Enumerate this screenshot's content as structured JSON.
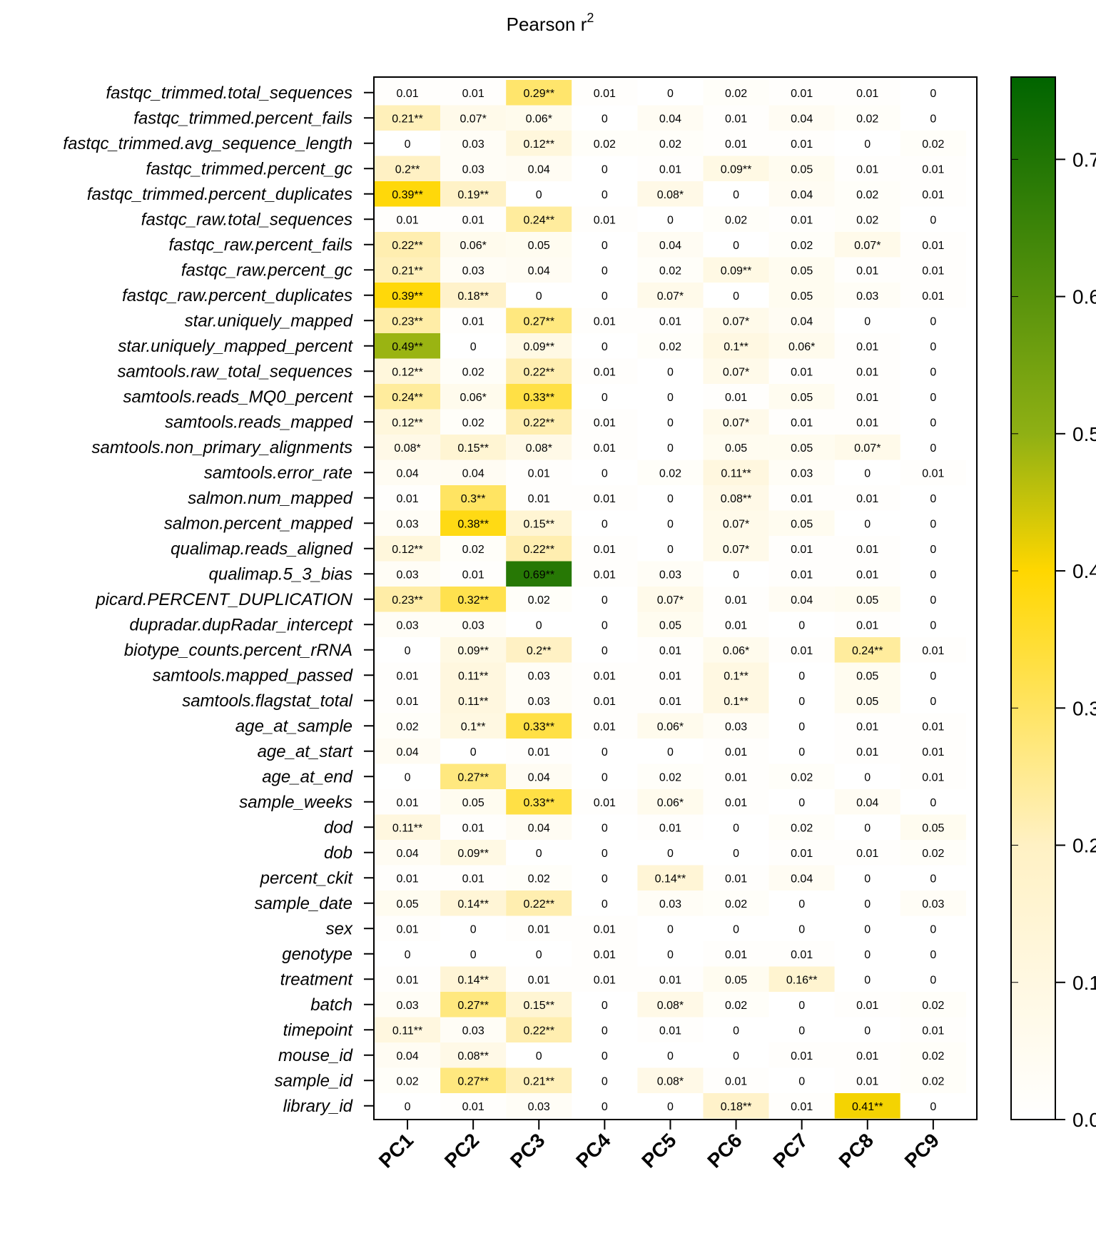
{
  "chart_data": {
    "type": "heatmap",
    "title": "Pearson r",
    "title_superscript": "2",
    "columns": [
      "PC1",
      "PC2",
      "PC3",
      "PC4",
      "PC5",
      "PC6",
      "PC7",
      "PC8",
      "PC9"
    ],
    "rows": [
      "fastqc_trimmed.total_sequences",
      "fastqc_trimmed.percent_fails",
      "fastqc_trimmed.avg_sequence_length",
      "fastqc_trimmed.percent_gc",
      "fastqc_trimmed.percent_duplicates",
      "fastqc_raw.total_sequences",
      "fastqc_raw.percent_fails",
      "fastqc_raw.percent_gc",
      "fastqc_raw.percent_duplicates",
      "star.uniquely_mapped",
      "star.uniquely_mapped_percent",
      "samtools.raw_total_sequences",
      "samtools.reads_MQ0_percent",
      "samtools.reads_mapped",
      "samtools.non_primary_alignments",
      "samtools.error_rate",
      "salmon.num_mapped",
      "salmon.percent_mapped",
      "qualimap.reads_aligned",
      "qualimap.5_3_bias",
      "picard.PERCENT_DUPLICATION",
      "dupradar.dupRadar_intercept",
      "biotype_counts.percent_rRNA",
      "samtools.mapped_passed",
      "samtools.flagstat_total",
      "age_at_sample",
      "age_at_start",
      "age_at_end",
      "sample_weeks",
      "dod",
      "dob",
      "percent_ckit",
      "sample_date",
      "sex",
      "genotype",
      "treatment",
      "batch",
      "timepoint",
      "mouse_id",
      "sample_id",
      "library_id"
    ],
    "values": [
      [
        0.01,
        0.01,
        0.29,
        0.01,
        0,
        0.02,
        0.01,
        0.01,
        0
      ],
      [
        0.21,
        0.07,
        0.06,
        0,
        0.04,
        0.01,
        0.04,
        0.02,
        0
      ],
      [
        0,
        0.03,
        0.12,
        0.02,
        0.02,
        0.01,
        0.01,
        0,
        0.02
      ],
      [
        0.2,
        0.03,
        0.04,
        0,
        0.01,
        0.09,
        0.05,
        0.01,
        0.01
      ],
      [
        0.39,
        0.19,
        0,
        0,
        0.08,
        0,
        0.04,
        0.02,
        0.01
      ],
      [
        0.01,
        0.01,
        0.24,
        0.01,
        0,
        0.02,
        0.01,
        0.02,
        0
      ],
      [
        0.22,
        0.06,
        0.05,
        0,
        0.04,
        0,
        0.02,
        0.07,
        0.01
      ],
      [
        0.21,
        0.03,
        0.04,
        0,
        0.02,
        0.09,
        0.05,
        0.01,
        0.01
      ],
      [
        0.39,
        0.18,
        0,
        0,
        0.07,
        0,
        0.05,
        0.03,
        0.01
      ],
      [
        0.23,
        0.01,
        0.27,
        0.01,
        0.01,
        0.07,
        0.04,
        0,
        0
      ],
      [
        0.49,
        0,
        0.09,
        0,
        0.02,
        0.1,
        0.06,
        0.01,
        0
      ],
      [
        0.12,
        0.02,
        0.22,
        0.01,
        0,
        0.07,
        0.01,
        0.01,
        0
      ],
      [
        0.24,
        0.06,
        0.33,
        0,
        0,
        0.01,
        0.05,
        0.01,
        0
      ],
      [
        0.12,
        0.02,
        0.22,
        0.01,
        0,
        0.07,
        0.01,
        0.01,
        0
      ],
      [
        0.08,
        0.15,
        0.08,
        0.01,
        0,
        0.05,
        0.05,
        0.07,
        0
      ],
      [
        0.04,
        0.04,
        0.01,
        0,
        0.02,
        0.11,
        0.03,
        0,
        0.01
      ],
      [
        0.01,
        0.3,
        0.01,
        0.01,
        0,
        0.08,
        0.01,
        0.01,
        0
      ],
      [
        0.03,
        0.38,
        0.15,
        0,
        0,
        0.07,
        0.05,
        0,
        0
      ],
      [
        0.12,
        0.02,
        0.22,
        0.01,
        0,
        0.07,
        0.01,
        0.01,
        0
      ],
      [
        0.03,
        0.01,
        0.69,
        0.01,
        0.03,
        0,
        0.01,
        0.01,
        0
      ],
      [
        0.23,
        0.32,
        0.02,
        0,
        0.07,
        0.01,
        0.04,
        0.05,
        0
      ],
      [
        0.03,
        0.03,
        0,
        0,
        0.05,
        0.01,
        0,
        0.01,
        0
      ],
      [
        0,
        0.09,
        0.2,
        0,
        0.01,
        0.06,
        0.01,
        0.24,
        0.01
      ],
      [
        0.01,
        0.11,
        0.03,
        0.01,
        0.01,
        0.1,
        0,
        0.05,
        0
      ],
      [
        0.01,
        0.11,
        0.03,
        0.01,
        0.01,
        0.1,
        0,
        0.05,
        0
      ],
      [
        0.02,
        0.1,
        0.33,
        0.01,
        0.06,
        0.03,
        0,
        0.01,
        0.01
      ],
      [
        0.04,
        0,
        0.01,
        0,
        0,
        0.01,
        0,
        0.01,
        0.01
      ],
      [
        0,
        0.27,
        0.04,
        0,
        0.02,
        0.01,
        0.02,
        0,
        0.01
      ],
      [
        0.01,
        0.05,
        0.33,
        0.01,
        0.06,
        0.01,
        0,
        0.04,
        0
      ],
      [
        0.11,
        0.01,
        0.04,
        0,
        0.01,
        0,
        0.02,
        0,
        0.05
      ],
      [
        0.04,
        0.09,
        0,
        0,
        0,
        0,
        0.01,
        0.01,
        0.02
      ],
      [
        0.01,
        0.01,
        0.02,
        0,
        0.14,
        0.01,
        0.04,
        0,
        0
      ],
      [
        0.05,
        0.14,
        0.22,
        0,
        0.03,
        0.02,
        0,
        0,
        0.03
      ],
      [
        0.01,
        0,
        0.01,
        0.01,
        0,
        0,
        0,
        0,
        0
      ],
      [
        0,
        0,
        0,
        0.01,
        0,
        0.01,
        0.01,
        0,
        0
      ],
      [
        0.01,
        0.14,
        0.01,
        0.01,
        0.01,
        0.05,
        0.16,
        0,
        0
      ],
      [
        0.03,
        0.27,
        0.15,
        0,
        0.08,
        0.02,
        0,
        0.01,
        0.02
      ],
      [
        0.11,
        0.03,
        0.22,
        0,
        0.01,
        0,
        0,
        0,
        0.01
      ],
      [
        0.04,
        0.08,
        0,
        0,
        0,
        0,
        0.01,
        0.01,
        0.02
      ],
      [
        0.02,
        0.27,
        0.21,
        0,
        0.08,
        0.01,
        0,
        0.01,
        0.02
      ],
      [
        0,
        0.01,
        0.03,
        0,
        0,
        0.18,
        0.01,
        0.41,
        0
      ]
    ],
    "labels": [
      [
        "0.01",
        "0.01",
        "0.29**",
        "0.01",
        "0",
        "0.02",
        "0.01",
        "0.01",
        "0"
      ],
      [
        "0.21**",
        "0.07*",
        "0.06*",
        "0",
        "0.04",
        "0.01",
        "0.04",
        "0.02",
        "0"
      ],
      [
        "0",
        "0.03",
        "0.12**",
        "0.02",
        "0.02",
        "0.01",
        "0.01",
        "0",
        "0.02"
      ],
      [
        "0.2**",
        "0.03",
        "0.04",
        "0",
        "0.01",
        "0.09**",
        "0.05",
        "0.01",
        "0.01"
      ],
      [
        "0.39**",
        "0.19**",
        "0",
        "0",
        "0.08*",
        "0",
        "0.04",
        "0.02",
        "0.01"
      ],
      [
        "0.01",
        "0.01",
        "0.24**",
        "0.01",
        "0",
        "0.02",
        "0.01",
        "0.02",
        "0"
      ],
      [
        "0.22**",
        "0.06*",
        "0.05",
        "0",
        "0.04",
        "0",
        "0.02",
        "0.07*",
        "0.01"
      ],
      [
        "0.21**",
        "0.03",
        "0.04",
        "0",
        "0.02",
        "0.09**",
        "0.05",
        "0.01",
        "0.01"
      ],
      [
        "0.39**",
        "0.18**",
        "0",
        "0",
        "0.07*",
        "0",
        "0.05",
        "0.03",
        "0.01"
      ],
      [
        "0.23**",
        "0.01",
        "0.27**",
        "0.01",
        "0.01",
        "0.07*",
        "0.04",
        "0",
        "0"
      ],
      [
        "0.49**",
        "0",
        "0.09**",
        "0",
        "0.02",
        "0.1**",
        "0.06*",
        "0.01",
        "0"
      ],
      [
        "0.12**",
        "0.02",
        "0.22**",
        "0.01",
        "0",
        "0.07*",
        "0.01",
        "0.01",
        "0"
      ],
      [
        "0.24**",
        "0.06*",
        "0.33**",
        "0",
        "0",
        "0.01",
        "0.05",
        "0.01",
        "0"
      ],
      [
        "0.12**",
        "0.02",
        "0.22**",
        "0.01",
        "0",
        "0.07*",
        "0.01",
        "0.01",
        "0"
      ],
      [
        "0.08*",
        "0.15**",
        "0.08*",
        "0.01",
        "0",
        "0.05",
        "0.05",
        "0.07*",
        "0"
      ],
      [
        "0.04",
        "0.04",
        "0.01",
        "0",
        "0.02",
        "0.11**",
        "0.03",
        "0",
        "0.01"
      ],
      [
        "0.01",
        "0.3**",
        "0.01",
        "0.01",
        "0",
        "0.08**",
        "0.01",
        "0.01",
        "0"
      ],
      [
        "0.03",
        "0.38**",
        "0.15**",
        "0",
        "0",
        "0.07*",
        "0.05",
        "0",
        "0"
      ],
      [
        "0.12**",
        "0.02",
        "0.22**",
        "0.01",
        "0",
        "0.07*",
        "0.01",
        "0.01",
        "0"
      ],
      [
        "0.03",
        "0.01",
        "0.69**",
        "0.01",
        "0.03",
        "0",
        "0.01",
        "0.01",
        "0"
      ],
      [
        "0.23**",
        "0.32**",
        "0.02",
        "0",
        "0.07*",
        "0.01",
        "0.04",
        "0.05",
        "0"
      ],
      [
        "0.03",
        "0.03",
        "0",
        "0",
        "0.05",
        "0.01",
        "0",
        "0.01",
        "0"
      ],
      [
        "0",
        "0.09**",
        "0.2**",
        "0",
        "0.01",
        "0.06*",
        "0.01",
        "0.24**",
        "0.01"
      ],
      [
        "0.01",
        "0.11**",
        "0.03",
        "0.01",
        "0.01",
        "0.1**",
        "0",
        "0.05",
        "0"
      ],
      [
        "0.01",
        "0.11**",
        "0.03",
        "0.01",
        "0.01",
        "0.1**",
        "0",
        "0.05",
        "0"
      ],
      [
        "0.02",
        "0.1**",
        "0.33**",
        "0.01",
        "0.06*",
        "0.03",
        "0",
        "0.01",
        "0.01"
      ],
      [
        "0.04",
        "0",
        "0.01",
        "0",
        "0",
        "0.01",
        "0",
        "0.01",
        "0.01"
      ],
      [
        "0",
        "0.27**",
        "0.04",
        "0",
        "0.02",
        "0.01",
        "0.02",
        "0",
        "0.01"
      ],
      [
        "0.01",
        "0.05",
        "0.33**",
        "0.01",
        "0.06*",
        "0.01",
        "0",
        "0.04",
        "0"
      ],
      [
        "0.11**",
        "0.01",
        "0.04",
        "0",
        "0.01",
        "0",
        "0.02",
        "0",
        "0.05"
      ],
      [
        "0.04",
        "0.09**",
        "0",
        "0",
        "0",
        "0",
        "0.01",
        "0.01",
        "0.02"
      ],
      [
        "0.01",
        "0.01",
        "0.02",
        "0",
        "0.14**",
        "0.01",
        "0.04",
        "0",
        "0"
      ],
      [
        "0.05",
        "0.14**",
        "0.22**",
        "0",
        "0.03",
        "0.02",
        "0",
        "0",
        "0.03"
      ],
      [
        "0.01",
        "0",
        "0.01",
        "0.01",
        "0",
        "0",
        "0",
        "0",
        "0"
      ],
      [
        "0",
        "0",
        "0",
        "0.01",
        "0",
        "0.01",
        "0.01",
        "0",
        "0"
      ],
      [
        "0.01",
        "0.14**",
        "0.01",
        "0.01",
        "0.01",
        "0.05",
        "0.16**",
        "0",
        "0"
      ],
      [
        "0.03",
        "0.27**",
        "0.15**",
        "0",
        "0.08*",
        "0.02",
        "0",
        "0.01",
        "0.02"
      ],
      [
        "0.11**",
        "0.03",
        "0.22**",
        "0",
        "0.01",
        "0",
        "0",
        "0",
        "0.01"
      ],
      [
        "0.04",
        "0.08**",
        "0",
        "0",
        "0",
        "0",
        "0.01",
        "0.01",
        "0.02"
      ],
      [
        "0.02",
        "0.27**",
        "0.21**",
        "0",
        "0.08*",
        "0.01",
        "0",
        "0.01",
        "0.02"
      ],
      [
        "0",
        "0.01",
        "0.03",
        "0",
        "0",
        "0.18**",
        "0.01",
        "0.41**",
        "0"
      ]
    ],
    "colorbar": {
      "range": [
        0,
        0.76
      ],
      "ticks": [
        0.0,
        0.1,
        0.2,
        0.3,
        0.4,
        0.5,
        0.6,
        0.7
      ],
      "tick_labels": [
        "0.0",
        "0.1",
        "0.2",
        "0.3",
        "0.4",
        "0.5",
        "0.6",
        "0.7"
      ],
      "color_stops": [
        {
          "value": 0.0,
          "color": "#ffffff"
        },
        {
          "value": 0.2,
          "color": "#fff1c4"
        },
        {
          "value": 0.4,
          "color": "#ffd700"
        },
        {
          "value": 0.5,
          "color": "#8fb014"
        },
        {
          "value": 0.76,
          "color": "#006400"
        }
      ]
    },
    "legend_placement": "right",
    "grid": false
  }
}
